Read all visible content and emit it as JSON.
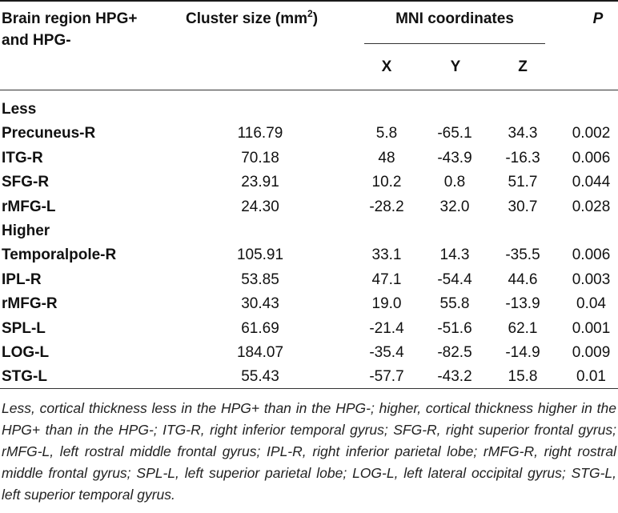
{
  "header": {
    "region_line1": "Brain region HPG+",
    "region_line2": "and HPG-",
    "cluster_label": "Cluster size (mm",
    "cluster_sup": "2",
    "cluster_close": ")",
    "mni_label": "MNI coordinates",
    "p_label": "P",
    "x_label": "X",
    "y_label": "Y",
    "z_label": "Z"
  },
  "groups": [
    {
      "label": "Less",
      "rows": [
        {
          "region": "Precuneus-R",
          "cluster": "116.79",
          "x": "5.8",
          "y": "-65.1",
          "z": "34.3",
          "p": "0.002"
        },
        {
          "region": "ITG-R",
          "cluster": "70.18",
          "x": "48",
          "y": "-43.9",
          "z": "-16.3",
          "p": "0.006"
        },
        {
          "region": "SFG-R",
          "cluster": "23.91",
          "x": "10.2",
          "y": "0.8",
          "z": "51.7",
          "p": "0.044"
        },
        {
          "region": "rMFG-L",
          "cluster": "24.30",
          "x": "-28.2",
          "y": "32.0",
          "z": "30.7",
          "p": "0.028"
        }
      ]
    },
    {
      "label": "Higher",
      "rows": [
        {
          "region": "Temporalpole-R",
          "cluster": "105.91",
          "x": "33.1",
          "y": "14.3",
          "z": "-35.5",
          "p": "0.006"
        },
        {
          "region": "IPL-R",
          "cluster": "53.85",
          "x": "47.1",
          "y": "-54.4",
          "z": "44.6",
          "p": "0.003"
        },
        {
          "region": "rMFG-R",
          "cluster": "30.43",
          "x": "19.0",
          "y": "55.8",
          "z": "-13.9",
          "p": "0.04"
        },
        {
          "region": "SPL-L",
          "cluster": "61.69",
          "x": "-21.4",
          "y": "-51.6",
          "z": "62.1",
          "p": "0.001"
        },
        {
          "region": "LOG-L",
          "cluster": "184.07",
          "x": "-35.4",
          "y": "-82.5",
          "z": "-14.9",
          "p": "0.009"
        },
        {
          "region": "STG-L",
          "cluster": "55.43",
          "x": "-57.7",
          "y": "-43.2",
          "z": "15.8",
          "p": "0.01"
        }
      ]
    }
  ],
  "footnote": "Less, cortical thickness less in the HPG+ than in the HPG-; higher, cortical thickness higher in the HPG+ than in the HPG-; ITG-R, right inferior temporal gyrus; SFG-R, right superior frontal gyrus; rMFG-L, left rostral middle frontal gyrus; IPL-R, right inferior parietal lobe; rMFG-R, right rostral middle frontal gyrus; SPL-L, left superior parietal lobe; LOG-L, left lateral occipital gyrus; STG-L, left superior temporal gyrus."
}
